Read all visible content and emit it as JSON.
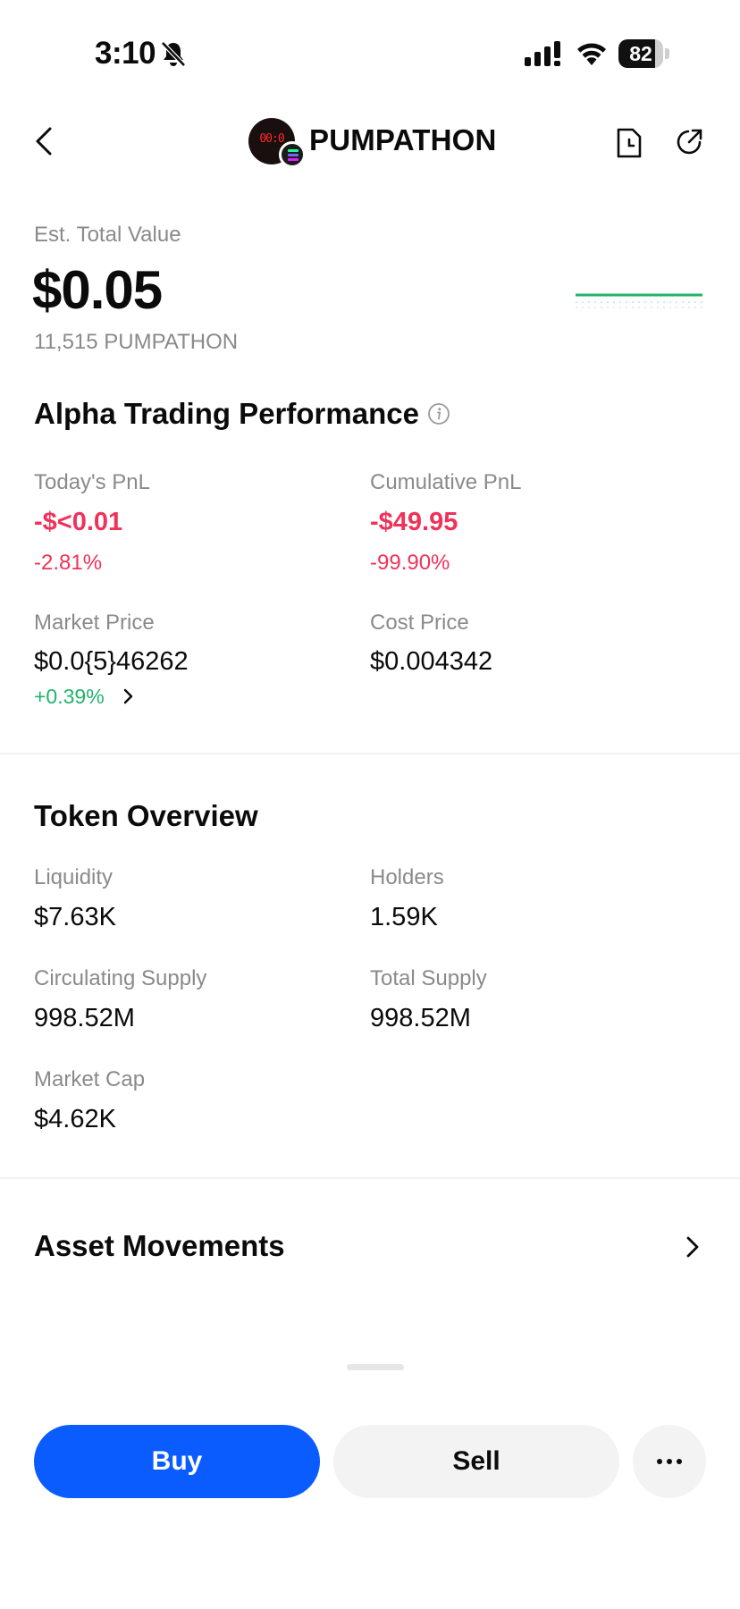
{
  "status_bar": {
    "time": "3:10",
    "battery": "82",
    "battery_level": 0.82
  },
  "header": {
    "token_name": "PUMPATHON",
    "logo_text": "00:0"
  },
  "summary": {
    "label": "Est. Total Value",
    "value": "$0.05",
    "holding": "11,515 PUMPATHON"
  },
  "alpha": {
    "title": "Alpha Trading Performance",
    "todays_pnl": {
      "label": "Today's PnL",
      "value": "-$<0.01",
      "percent": "-2.81%"
    },
    "cumulative_pnl": {
      "label": "Cumulative PnL",
      "value": "-$49.95",
      "percent": "-99.90%"
    },
    "market_price": {
      "label": "Market Price",
      "value": "$0.0{5}46262",
      "change": "+0.39%"
    },
    "cost_price": {
      "label": "Cost Price",
      "value": "$0.004342"
    }
  },
  "overview": {
    "title": "Token Overview",
    "liquidity": {
      "label": "Liquidity",
      "value": "$7.63K"
    },
    "holders": {
      "label": "Holders",
      "value": "1.59K"
    },
    "circulating_supply": {
      "label": "Circulating Supply",
      "value": "998.52M"
    },
    "total_supply": {
      "label": "Total Supply",
      "value": "998.52M"
    },
    "market_cap": {
      "label": "Market Cap",
      "value": "$4.62K"
    }
  },
  "asset_movements": {
    "title": "Asset Movements"
  },
  "actions": {
    "buy": "Buy",
    "sell": "Sell"
  },
  "colors": {
    "accent": "#0b5cff",
    "negative": "#f0325a",
    "positive": "#1fb36b",
    "muted": "#8a8a8a"
  }
}
